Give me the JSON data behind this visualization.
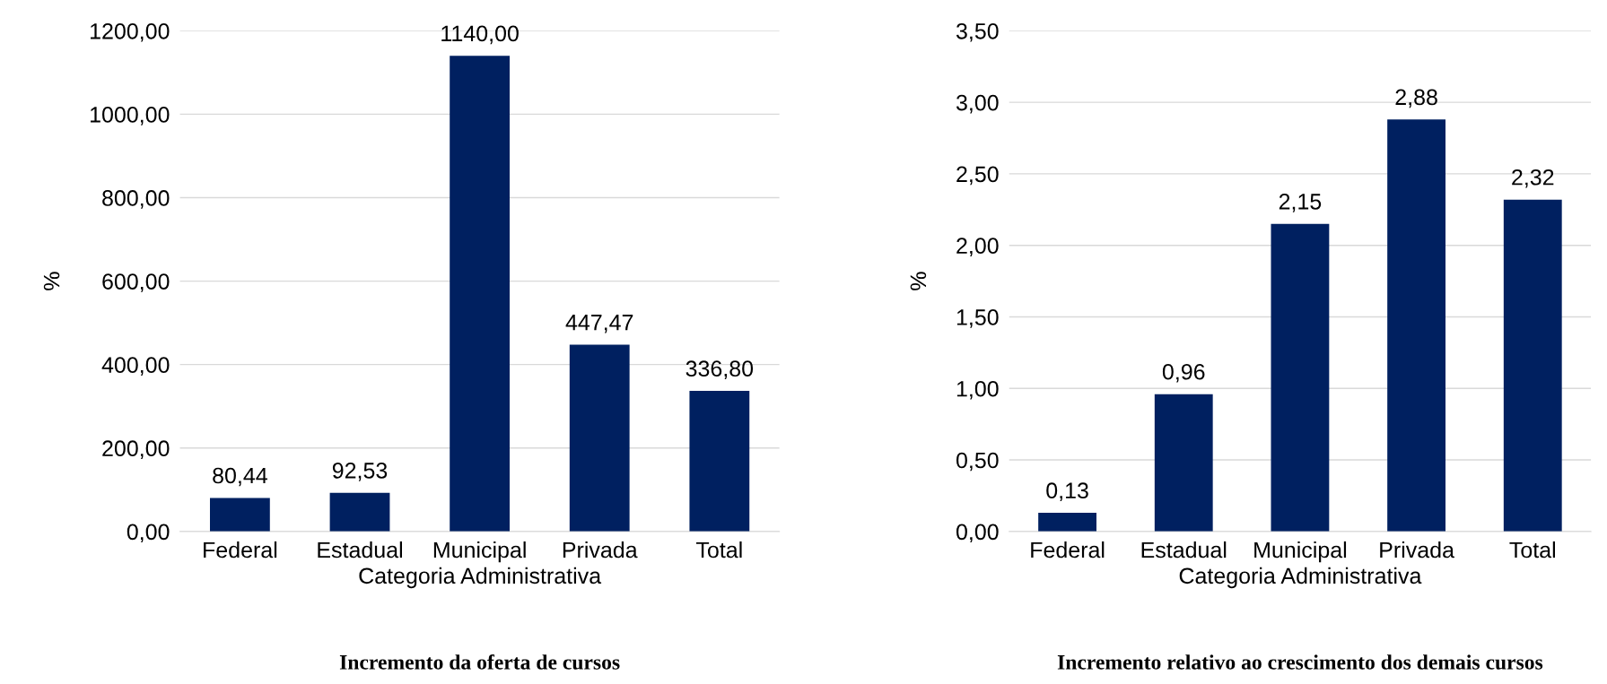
{
  "chart_data": [
    {
      "type": "bar",
      "title": "Incremento da oferta de cursos",
      "xlabel": "Categoria Administrativa",
      "ylabel": "%",
      "categories": [
        "Federal",
        "Estadual",
        "Municipal",
        "Privada",
        "Total"
      ],
      "values": [
        80.44,
        92.53,
        1140.0,
        447.47,
        336.8
      ],
      "color": "#002060",
      "value_labels": [
        "80,44",
        "92,53",
        "1140,00",
        "447,47",
        "336,80"
      ],
      "ylim": [
        0,
        1200
      ],
      "yticks": [
        {
          "value": 0,
          "label": "0,00"
        },
        {
          "value": 200,
          "label": "200,00"
        },
        {
          "value": 400,
          "label": "400,00"
        },
        {
          "value": 600,
          "label": "600,00"
        },
        {
          "value": 800,
          "label": "800,00"
        },
        {
          "value": 1000,
          "label": "1000,00"
        },
        {
          "value": 1200,
          "label": "1200,00"
        }
      ],
      "grid": "y",
      "legend": false
    },
    {
      "type": "bar",
      "title": "Incremento relativo ao crescimento dos demais cursos",
      "xlabel": "Categoria Administrativa",
      "ylabel": "%",
      "categories": [
        "Federal",
        "Estadual",
        "Municipal",
        "Privada",
        "Total"
      ],
      "values": [
        0.13,
        0.96,
        2.15,
        2.88,
        2.32
      ],
      "color": "#002060",
      "value_labels": [
        "0,13",
        "0,96",
        "2,15",
        "2,88",
        "2,32"
      ],
      "ylim": [
        0,
        3.5
      ],
      "yticks": [
        {
          "value": 0,
          "label": "0,00"
        },
        {
          "value": 0.5,
          "label": "0,50"
        },
        {
          "value": 1.0,
          "label": "1,00"
        },
        {
          "value": 1.5,
          "label": "1,50"
        },
        {
          "value": 2.0,
          "label": "2,00"
        },
        {
          "value": 2.5,
          "label": "2,50"
        },
        {
          "value": 3.0,
          "label": "3,00"
        },
        {
          "value": 3.5,
          "label": "3,50"
        }
      ],
      "grid": "y",
      "legend": false
    }
  ]
}
